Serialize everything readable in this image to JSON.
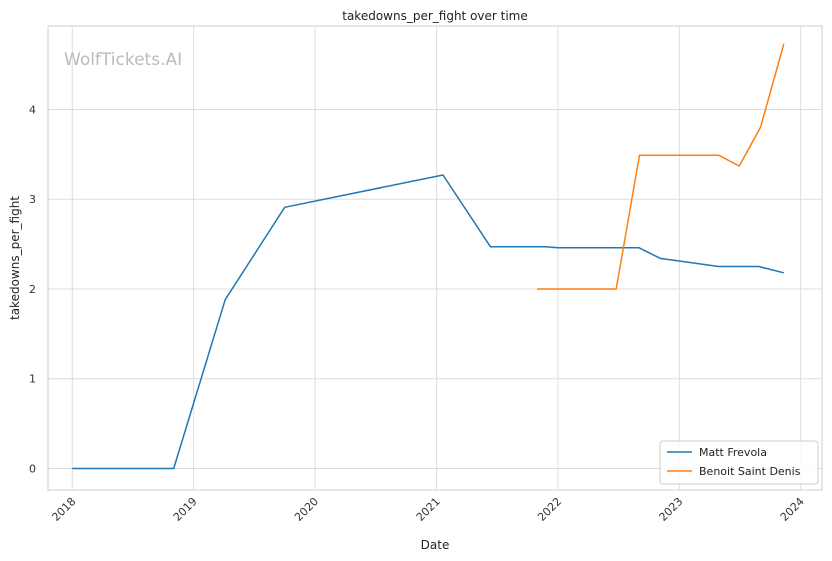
{
  "chart_data": {
    "type": "line",
    "title": "takedowns_per_fight over time",
    "xlabel": "Date",
    "ylabel": "takedowns_per_fight",
    "watermark": "WolfTickets.AI",
    "x_ticks": [
      "2018",
      "2019",
      "2020",
      "2021",
      "2022",
      "2023",
      "2024"
    ],
    "y_ticks": [
      0,
      1,
      2,
      3,
      4
    ],
    "xlim": [
      "2017-10-20",
      "2024-03-05"
    ],
    "ylim": [
      -0.24,
      4.93
    ],
    "grid": true,
    "legend_position": "lower-right",
    "series": [
      {
        "name": "Matt Frevola",
        "color": "#1f77b4",
        "points": [
          [
            "2018-01-01",
            0
          ],
          [
            "2018-11-02",
            0
          ],
          [
            "2019-04-06",
            1.88
          ],
          [
            "2019-10-02",
            2.91
          ],
          [
            "2021-01-20",
            3.27
          ],
          [
            "2021-06-12",
            2.47
          ],
          [
            "2021-11-25",
            2.47
          ],
          [
            "2022-01-01",
            2.46
          ],
          [
            "2022-09-01",
            2.46
          ],
          [
            "2022-11-05",
            2.34
          ],
          [
            "2023-04-29",
            2.25
          ],
          [
            "2023-08-28",
            2.25
          ],
          [
            "2023-11-11",
            2.18
          ]
        ]
      },
      {
        "name": "Benoit Saint Denis",
        "color": "#ff7f0e",
        "points": [
          [
            "2021-10-30",
            2.0
          ],
          [
            "2022-06-25",
            2.0
          ],
          [
            "2022-09-03",
            3.49
          ],
          [
            "2023-04-29",
            3.49
          ],
          [
            "2023-06-30",
            3.37
          ],
          [
            "2023-09-02",
            3.8
          ],
          [
            "2023-11-11",
            4.73
          ]
        ]
      }
    ]
  }
}
